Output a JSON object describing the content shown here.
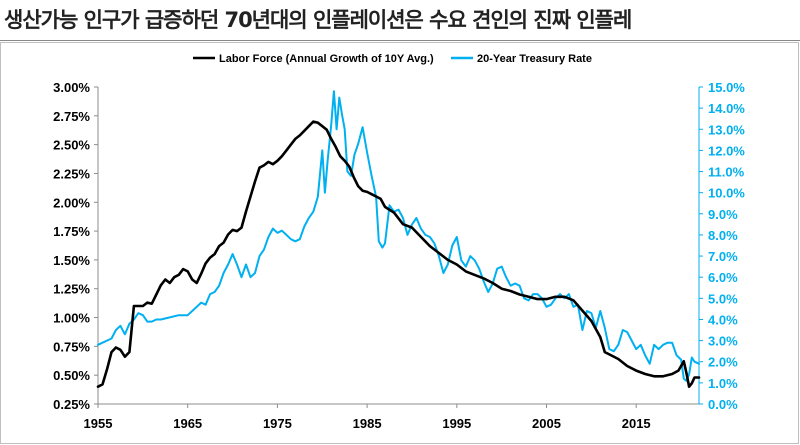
{
  "title": "생산가능 인구가 급증하던 70년대의 인플레이션은 수요 견인의 진짜 인플레",
  "chart_data": {
    "type": "line",
    "title": "",
    "legend": [
      "Labor Force (Annual Growth of 10Y Avg.)",
      "20-Year Treasury Rate"
    ],
    "legend_position": "top-center",
    "x_ticks": [
      "1955",
      "1965",
      "1975",
      "1985",
      "1995",
      "2005",
      "2015"
    ],
    "xlim": [
      1955,
      2022
    ],
    "left_axis": {
      "ylim": [
        0.25,
        3.0
      ],
      "ticks": [
        "0.25%",
        "0.50%",
        "0.75%",
        "1.00%",
        "1.25%",
        "1.50%",
        "1.75%",
        "2.00%",
        "2.25%",
        "2.50%",
        "2.75%",
        "3.00%"
      ]
    },
    "right_axis": {
      "ylim": [
        0.0,
        15.0
      ],
      "ticks": [
        "0.0%",
        "1.0%",
        "2.0%",
        "3.0%",
        "4.0%",
        "5.0%",
        "6.0%",
        "7.0%",
        "8.0%",
        "9.0%",
        "10.0%",
        "11.0%",
        "12.0%",
        "13.0%",
        "14.0%",
        "15.0%"
      ]
    },
    "colors": {
      "labor_force": "#000000",
      "treasury": "#00b0f0",
      "right_axis": "#00b0f0"
    },
    "grid": false,
    "series": [
      {
        "name": "Labor Force (Annual Growth of 10Y Avg.)",
        "axis": "left",
        "points": [
          [
            1955.0,
            0.4
          ],
          [
            1955.5,
            0.42
          ],
          [
            1956.0,
            0.55
          ],
          [
            1956.5,
            0.7
          ],
          [
            1957.0,
            0.74
          ],
          [
            1957.5,
            0.72
          ],
          [
            1958.0,
            0.66
          ],
          [
            1958.5,
            0.7
          ],
          [
            1959.0,
            1.1
          ],
          [
            1959.5,
            1.1
          ],
          [
            1960.0,
            1.1
          ],
          [
            1960.5,
            1.13
          ],
          [
            1961.0,
            1.12
          ],
          [
            1961.5,
            1.2
          ],
          [
            1962.0,
            1.28
          ],
          [
            1962.5,
            1.33
          ],
          [
            1963.0,
            1.3
          ],
          [
            1963.5,
            1.35
          ],
          [
            1964.0,
            1.37
          ],
          [
            1964.5,
            1.42
          ],
          [
            1965.0,
            1.4
          ],
          [
            1965.5,
            1.33
          ],
          [
            1966.0,
            1.3
          ],
          [
            1966.5,
            1.38
          ],
          [
            1967.0,
            1.47
          ],
          [
            1967.5,
            1.52
          ],
          [
            1968.0,
            1.55
          ],
          [
            1968.5,
            1.62
          ],
          [
            1969.0,
            1.65
          ],
          [
            1969.5,
            1.72
          ],
          [
            1970.0,
            1.76
          ],
          [
            1970.5,
            1.75
          ],
          [
            1971.0,
            1.78
          ],
          [
            1971.5,
            1.92
          ],
          [
            1972.0,
            2.05
          ],
          [
            1972.5,
            2.18
          ],
          [
            1973.0,
            2.3
          ],
          [
            1973.5,
            2.32
          ],
          [
            1974.0,
            2.35
          ],
          [
            1974.5,
            2.33
          ],
          [
            1975.0,
            2.36
          ],
          [
            1975.5,
            2.4
          ],
          [
            1976.0,
            2.45
          ],
          [
            1976.5,
            2.5
          ],
          [
            1977.0,
            2.55
          ],
          [
            1977.5,
            2.58
          ],
          [
            1978.0,
            2.62
          ],
          [
            1978.5,
            2.66
          ],
          [
            1979.0,
            2.7
          ],
          [
            1979.5,
            2.69
          ],
          [
            1980.0,
            2.66
          ],
          [
            1980.5,
            2.63
          ],
          [
            1981.0,
            2.55
          ],
          [
            1981.5,
            2.48
          ],
          [
            1982.0,
            2.4
          ],
          [
            1982.5,
            2.36
          ],
          [
            1983.0,
            2.31
          ],
          [
            1983.5,
            2.22
          ],
          [
            1984.0,
            2.14
          ],
          [
            1984.5,
            2.1
          ],
          [
            1985.0,
            2.09
          ],
          [
            1985.5,
            2.07
          ],
          [
            1986.0,
            2.05
          ],
          [
            1986.5,
            2.03
          ],
          [
            1987.0,
            1.96
          ],
          [
            1988.0,
            1.91
          ],
          [
            1989.0,
            1.81
          ],
          [
            1990.0,
            1.78
          ],
          [
            1991.0,
            1.7
          ],
          [
            1992.0,
            1.62
          ],
          [
            1993.0,
            1.56
          ],
          [
            1994.0,
            1.5
          ],
          [
            1995.0,
            1.46
          ],
          [
            1996.0,
            1.4
          ],
          [
            1997.0,
            1.37
          ],
          [
            1998.0,
            1.34
          ],
          [
            1999.0,
            1.3
          ],
          [
            2000.0,
            1.25
          ],
          [
            2001.0,
            1.23
          ],
          [
            2002.0,
            1.2
          ],
          [
            2003.0,
            1.18
          ],
          [
            2004.0,
            1.16
          ],
          [
            2005.0,
            1.16
          ],
          [
            2006.0,
            1.18
          ],
          [
            2007.0,
            1.18
          ],
          [
            2008.0,
            1.15
          ],
          [
            2009.0,
            1.06
          ],
          [
            2010.0,
            0.97
          ],
          [
            2011.0,
            0.83
          ],
          [
            2011.5,
            0.7
          ],
          [
            2012.0,
            0.68
          ],
          [
            2013.0,
            0.64
          ],
          [
            2014.0,
            0.58
          ],
          [
            2015.0,
            0.54
          ],
          [
            2016.0,
            0.51
          ],
          [
            2017.0,
            0.49
          ],
          [
            2018.0,
            0.49
          ],
          [
            2019.0,
            0.51
          ],
          [
            2019.7,
            0.54
          ],
          [
            2020.0,
            0.58
          ],
          [
            2020.3,
            0.62
          ],
          [
            2020.6,
            0.52
          ],
          [
            2020.9,
            0.4
          ],
          [
            2021.2,
            0.43
          ],
          [
            2021.5,
            0.48
          ],
          [
            2022.0,
            0.48
          ]
        ]
      },
      {
        "name": "20-Year Treasury Rate",
        "axis": "right",
        "points": [
          [
            1955.0,
            2.8
          ],
          [
            1955.5,
            2.9
          ],
          [
            1956.0,
            3.0
          ],
          [
            1956.5,
            3.1
          ],
          [
            1957.0,
            3.5
          ],
          [
            1957.5,
            3.7
          ],
          [
            1958.0,
            3.3
          ],
          [
            1958.5,
            3.8
          ],
          [
            1959.0,
            4.0
          ],
          [
            1959.5,
            4.3
          ],
          [
            1960.0,
            4.2
          ],
          [
            1960.5,
            3.9
          ],
          [
            1961.0,
            3.9
          ],
          [
            1961.5,
            4.0
          ],
          [
            1962.0,
            4.0
          ],
          [
            1963.0,
            4.1
          ],
          [
            1964.0,
            4.2
          ],
          [
            1965.0,
            4.2
          ],
          [
            1965.5,
            4.4
          ],
          [
            1966.0,
            4.6
          ],
          [
            1966.5,
            4.8
          ],
          [
            1967.0,
            4.7
          ],
          [
            1967.5,
            5.2
          ],
          [
            1968.0,
            5.3
          ],
          [
            1968.5,
            5.6
          ],
          [
            1969.0,
            6.2
          ],
          [
            1969.5,
            6.6
          ],
          [
            1970.0,
            7.1
          ],
          [
            1970.5,
            6.6
          ],
          [
            1971.0,
            6.0
          ],
          [
            1971.5,
            6.6
          ],
          [
            1972.0,
            6.0
          ],
          [
            1972.5,
            6.2
          ],
          [
            1973.0,
            7.0
          ],
          [
            1973.5,
            7.3
          ],
          [
            1974.0,
            7.9
          ],
          [
            1974.5,
            8.3
          ],
          [
            1975.0,
            8.1
          ],
          [
            1975.5,
            8.2
          ],
          [
            1976.0,
            8.0
          ],
          [
            1976.5,
            7.8
          ],
          [
            1977.0,
            7.7
          ],
          [
            1977.5,
            7.8
          ],
          [
            1978.0,
            8.4
          ],
          [
            1978.5,
            8.8
          ],
          [
            1979.0,
            9.1
          ],
          [
            1979.5,
            9.8
          ],
          [
            1980.0,
            12.0
          ],
          [
            1980.3,
            10.0
          ],
          [
            1980.6,
            11.5
          ],
          [
            1981.0,
            13.2
          ],
          [
            1981.3,
            14.8
          ],
          [
            1981.6,
            13.0
          ],
          [
            1981.9,
            14.5
          ],
          [
            1982.2,
            13.7
          ],
          [
            1982.5,
            13.0
          ],
          [
            1982.8,
            11.0
          ],
          [
            1983.2,
            10.8
          ],
          [
            1983.6,
            11.8
          ],
          [
            1984.0,
            12.3
          ],
          [
            1984.5,
            13.1
          ],
          [
            1985.0,
            11.9
          ],
          [
            1985.5,
            10.8
          ],
          [
            1986.0,
            9.8
          ],
          [
            1986.3,
            7.7
          ],
          [
            1986.7,
            7.4
          ],
          [
            1987.0,
            7.6
          ],
          [
            1987.5,
            9.4
          ],
          [
            1988.0,
            9.1
          ],
          [
            1988.5,
            9.2
          ],
          [
            1989.0,
            8.8
          ],
          [
            1989.5,
            8.0
          ],
          [
            1990.0,
            8.5
          ],
          [
            1990.5,
            8.8
          ],
          [
            1991.0,
            8.3
          ],
          [
            1991.5,
            8.0
          ],
          [
            1992.0,
            7.9
          ],
          [
            1992.5,
            7.6
          ],
          [
            1993.0,
            7.0
          ],
          [
            1993.5,
            6.2
          ],
          [
            1994.0,
            6.6
          ],
          [
            1994.5,
            7.5
          ],
          [
            1995.0,
            7.9
          ],
          [
            1995.5,
            6.8
          ],
          [
            1996.0,
            6.5
          ],
          [
            1996.5,
            7.0
          ],
          [
            1997.0,
            6.8
          ],
          [
            1997.5,
            6.4
          ],
          [
            1998.0,
            5.8
          ],
          [
            1998.5,
            5.3
          ],
          [
            1999.0,
            5.7
          ],
          [
            1999.5,
            6.4
          ],
          [
            2000.0,
            6.5
          ],
          [
            2000.5,
            6.0
          ],
          [
            2001.0,
            5.6
          ],
          [
            2001.5,
            5.7
          ],
          [
            2002.0,
            5.6
          ],
          [
            2002.5,
            5.0
          ],
          [
            2003.0,
            4.9
          ],
          [
            2003.5,
            5.2
          ],
          [
            2004.0,
            5.2
          ],
          [
            2004.5,
            5.0
          ],
          [
            2005.0,
            4.6
          ],
          [
            2005.5,
            4.7
          ],
          [
            2006.0,
            5.0
          ],
          [
            2006.5,
            5.2
          ],
          [
            2007.0,
            5.0
          ],
          [
            2007.5,
            5.2
          ],
          [
            2008.0,
            4.6
          ],
          [
            2008.5,
            4.7
          ],
          [
            2009.0,
            3.5
          ],
          [
            2009.5,
            4.4
          ],
          [
            2010.0,
            4.3
          ],
          [
            2010.5,
            3.6
          ],
          [
            2011.0,
            4.4
          ],
          [
            2011.5,
            3.6
          ],
          [
            2012.0,
            2.6
          ],
          [
            2012.5,
            2.5
          ],
          [
            2013.0,
            2.8
          ],
          [
            2013.5,
            3.5
          ],
          [
            2014.0,
            3.4
          ],
          [
            2014.5,
            3.0
          ],
          [
            2015.0,
            2.6
          ],
          [
            2015.5,
            2.8
          ],
          [
            2016.0,
            2.3
          ],
          [
            2016.5,
            1.9
          ],
          [
            2017.0,
            2.8
          ],
          [
            2017.5,
            2.6
          ],
          [
            2018.0,
            2.8
          ],
          [
            2018.5,
            2.9
          ],
          [
            2019.0,
            2.9
          ],
          [
            2019.5,
            2.3
          ],
          [
            2020.0,
            2.1
          ],
          [
            2020.3,
            1.2
          ],
          [
            2020.6,
            1.1
          ],
          [
            2020.9,
            1.4
          ],
          [
            2021.2,
            2.2
          ],
          [
            2021.5,
            2.0
          ],
          [
            2022.0,
            1.9
          ]
        ]
      }
    ]
  }
}
